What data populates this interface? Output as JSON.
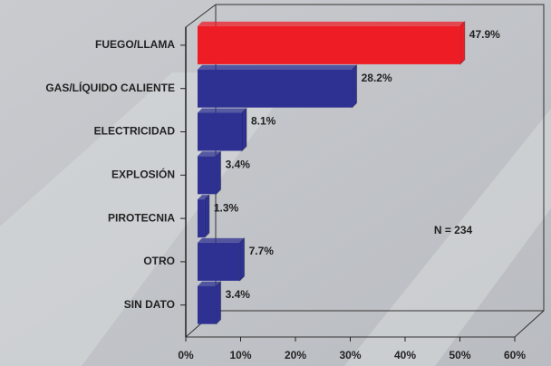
{
  "chart_data": {
    "type": "bar",
    "orientation": "horizontal",
    "categories": [
      "FUEGO/LLAMA",
      "GAS/LÍQUIDO CALIENTE",
      "ELECTRICIDAD",
      "EXPLOSIÓN",
      "PIROTECNIA",
      "OTRO",
      "SIN DATO"
    ],
    "values": [
      47.9,
      28.2,
      8.1,
      3.4,
      1.3,
      7.7,
      3.4
    ],
    "value_labels": [
      "47.9%",
      "28.2%",
      "8.1%",
      "3.4%",
      "1.3%",
      "7.7%",
      "3.4%"
    ],
    "colors": [
      "#ee1c25",
      "#2e3192",
      "#2e3192",
      "#2e3192",
      "#2e3192",
      "#2e3192",
      "#2e3192"
    ],
    "xlim": [
      0,
      60
    ],
    "xticks": [
      {
        "value": 0,
        "label": "0%"
      },
      {
        "value": 10,
        "label": "10%"
      },
      {
        "value": 20,
        "label": "20%"
      },
      {
        "value": 30,
        "label": "30%"
      },
      {
        "value": 40,
        "label": "40%"
      },
      {
        "value": 50,
        "label": "50%"
      },
      {
        "value": 60,
        "label": "60%"
      }
    ],
    "annotation": "N = 234"
  }
}
